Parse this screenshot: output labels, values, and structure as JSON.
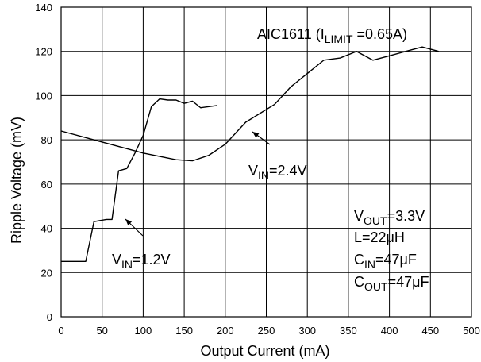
{
  "chart_data": {
    "type": "line",
    "title": {
      "main": "AIC1611 (I",
      "sub": "LIMIT",
      "rest": " =0.65A)"
    },
    "xlabel": "Output Current (mA)",
    "ylabel": "Ripple Voltage (mV)",
    "xlim": [
      0,
      500
    ],
    "ylim": [
      0,
      140
    ],
    "xticks": [
      0,
      50,
      100,
      150,
      200,
      250,
      300,
      350,
      400,
      450,
      500
    ],
    "yticks": [
      0,
      20,
      40,
      60,
      80,
      100,
      120,
      140
    ],
    "grid": true,
    "series": [
      {
        "name": "VIN=1.2V",
        "label": {
          "main": "V",
          "sub": "IN",
          "rest": "=1.2V"
        },
        "x": [
          0,
          30,
          40,
          55,
          62,
          70,
          80,
          90,
          100,
          110,
          120,
          130,
          140,
          150,
          160,
          170,
          180,
          190
        ],
        "y": [
          25,
          25,
          43,
          44,
          44,
          66,
          67,
          74,
          82,
          95,
          98.5,
          98,
          98,
          96.5,
          97.5,
          94.5,
          95,
          95.5
        ]
      },
      {
        "name": "VIN=2.4V",
        "label": {
          "main": "V",
          "sub": "IN",
          "rest": "=2.4V"
        },
        "x": [
          0,
          50,
          100,
          140,
          160,
          180,
          200,
          225,
          260,
          280,
          300,
          320,
          340,
          360,
          380,
          400,
          420,
          440,
          460
        ],
        "y": [
          84,
          79,
          74,
          71,
          70.5,
          73,
          78,
          88,
          96,
          104,
          110,
          116,
          117,
          120,
          116,
          118,
          120,
          122,
          120
        ]
      }
    ],
    "annotations": [
      {
        "main": "V",
        "sub": "OUT",
        "rest": "=3.3V"
      },
      {
        "main": "L=22μH",
        "sub": "",
        "rest": ""
      },
      {
        "main": "C",
        "sub": "IN",
        "rest": "=47μF"
      },
      {
        "main": "C",
        "sub": "OUT",
        "rest": "=47μF"
      }
    ],
    "line_color": "#000000",
    "grid_color": "#000000"
  }
}
